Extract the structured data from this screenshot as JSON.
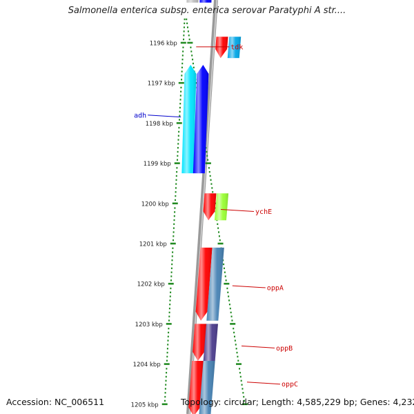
{
  "title": "Salmonella enterica subsp. enterica serovar Paratyphi A str....",
  "footer": {
    "accession": "Accession: NC_006511",
    "stats": "Topology: circular; Length: 4,585,229 bp; Genes: 4,232"
  },
  "colors": {
    "backbone": "#808080",
    "ticks": "#228b22",
    "forward_label": "#cc0000",
    "reverse_label": "#0000cc",
    "red": "#ff0000",
    "blue": "#0000ff",
    "cyan": "#00e5ff",
    "deepskyblue": "#00a6e6",
    "greenyellow": "#99ff33",
    "steelblue": "#4682b4",
    "slateblue": "#4b3c8c",
    "gray": "#bdbdbd"
  },
  "scale_labels": [
    "1196 kbp",
    "1197 kbp",
    "1198 kbp",
    "1199 kbp",
    "1200 kbp",
    "1201 kbp",
    "1202 kbp",
    "1203 kbp",
    "1204 kbp",
    "1205 kbp"
  ],
  "gene_labels": [
    {
      "name": "tdk",
      "strand": "forward",
      "label_kbp": 1196.1,
      "target_kbp": 1196.1
    },
    {
      "name": "adh",
      "strand": "reverse",
      "label_kbp": 1197.8,
      "target_kbp": 1197.85
    },
    {
      "name": "ychE",
      "strand": "forward",
      "label_kbp": 1200.2,
      "target_kbp": 1200.15
    },
    {
      "name": "oppA",
      "strand": "forward",
      "label_kbp": 1202.1,
      "target_kbp": 1202.05
    },
    {
      "name": "oppB",
      "strand": "forward",
      "label_kbp": 1203.6,
      "target_kbp": 1203.55
    },
    {
      "name": "oppC",
      "strand": "forward",
      "label_kbp": 1204.5,
      "target_kbp": 1204.45
    }
  ],
  "features": [
    {
      "ring": "r1",
      "start_kbp": 1195.0,
      "end_kbp": 1194.75,
      "direction": "none",
      "color": "gray"
    },
    {
      "ring": "r2",
      "start_kbp": 1195.0,
      "end_kbp": 1194.75,
      "direction": "none",
      "color": "blue"
    },
    {
      "ring": "f1",
      "start_kbp": 1195.85,
      "end_kbp": 1196.38,
      "direction": "forward",
      "color": "red"
    },
    {
      "ring": "f2",
      "start_kbp": 1195.85,
      "end_kbp": 1196.38,
      "direction": "none",
      "color": "deepskyblue"
    },
    {
      "ring": "r1",
      "start_kbp": 1199.25,
      "end_kbp": 1196.55,
      "direction": "reverse",
      "color": "cyan"
    },
    {
      "ring": "r2",
      "start_kbp": 1199.25,
      "end_kbp": 1196.55,
      "direction": "reverse",
      "color": "blue"
    },
    {
      "ring": "f1",
      "start_kbp": 1199.75,
      "end_kbp": 1200.42,
      "direction": "forward",
      "color": "red"
    },
    {
      "ring": "f2",
      "start_kbp": 1199.75,
      "end_kbp": 1200.42,
      "direction": "none",
      "color": "greenyellow"
    },
    {
      "ring": "f1",
      "start_kbp": 1201.1,
      "end_kbp": 1202.92,
      "direction": "forward",
      "color": "red"
    },
    {
      "ring": "f2",
      "start_kbp": 1201.1,
      "end_kbp": 1202.92,
      "direction": "none",
      "color": "steelblue"
    },
    {
      "ring": "f1",
      "start_kbp": 1203.0,
      "end_kbp": 1203.92,
      "direction": "forward",
      "color": "red"
    },
    {
      "ring": "f2",
      "start_kbp": 1203.0,
      "end_kbp": 1203.92,
      "direction": "none",
      "color": "slateblue"
    },
    {
      "ring": "f1",
      "start_kbp": 1203.92,
      "end_kbp": 1205.3,
      "direction": "forward",
      "color": "red"
    },
    {
      "ring": "f2",
      "start_kbp": 1203.92,
      "end_kbp": 1205.3,
      "direction": "none",
      "color": "steelblue"
    }
  ]
}
